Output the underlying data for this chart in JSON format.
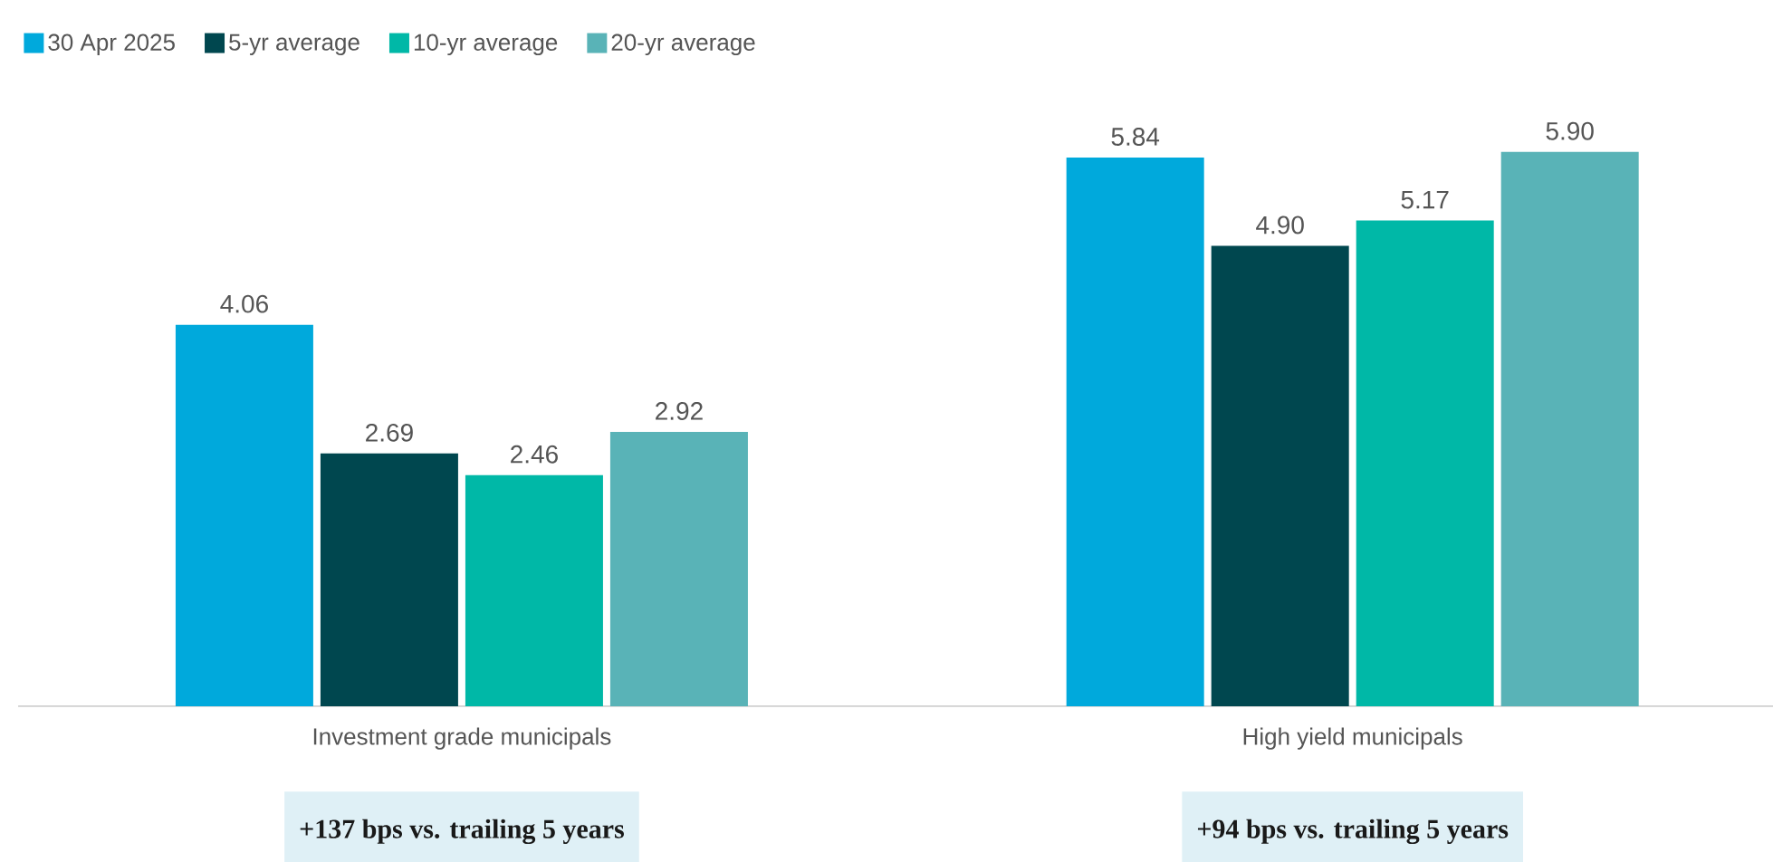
{
  "chart_data": {
    "type": "bar",
    "categories": [
      "Investment grade municipals",
      "High yield municipals"
    ],
    "series": [
      {
        "name": "30 Apr 2025",
        "color": "#00a9dc",
        "values": [
          4.06,
          5.84
        ],
        "value_labels": [
          "4.06",
          "5.84"
        ]
      },
      {
        "name": "5-yr average",
        "color": "#00474f",
        "values": [
          2.69,
          4.9
        ],
        "value_labels": [
          "2.69",
          "4.90"
        ]
      },
      {
        "name": "10-yr average",
        "color": "#00b8a7",
        "values": [
          2.46,
          5.17
        ],
        "value_labels": [
          "2.46",
          "5.17"
        ]
      },
      {
        "name": "20-yr average",
        "color": "#59b3b7",
        "values": [
          2.92,
          5.9
        ],
        "value_labels": [
          "2.92",
          "5.90"
        ]
      }
    ],
    "legend": "top left",
    "annotations": [
      "+137 bps vs. trailing 5 years",
      "+94 bps vs. trailing 5 years"
    ]
  }
}
